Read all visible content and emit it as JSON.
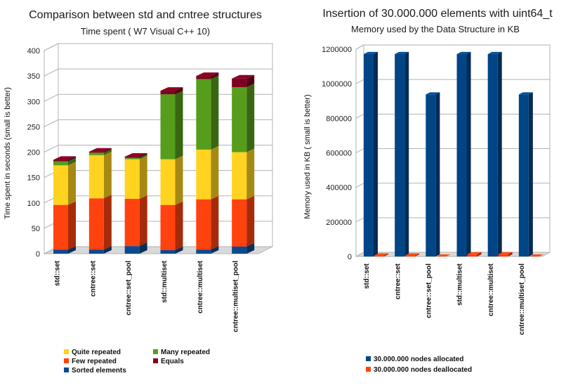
{
  "chart_data": [
    {
      "type": "bar",
      "stacked": true,
      "title": "Comparison between std and cntree structures",
      "subtitle": "Time spent ( W7 Visual C++ 10)",
      "xlabel": "",
      "ylabel": "Time spent in seconds (small is better)",
      "ylim": [
        0,
        400
      ],
      "yticks": [
        0,
        50,
        100,
        150,
        200,
        250,
        300,
        350,
        400
      ],
      "grid": true,
      "legend_position": "bottom",
      "categories": [
        "std::set",
        "cntree::set",
        "cntree::set_pool",
        "std::multiset",
        "cntree::multiset",
        "cntree::multiset_pool"
      ],
      "series": [
        {
          "name": "Sorted elements",
          "color": "#0c4a8f",
          "values": [
            8,
            8,
            15,
            7,
            8,
            14
          ]
        },
        {
          "name": "Few repeated",
          "color": "#ff420e",
          "values": [
            88,
            101,
            93,
            89,
            99,
            93
          ]
        },
        {
          "name": "Quite repeated",
          "color": "#ffd320",
          "values": [
            78,
            85,
            78,
            90,
            98,
            93
          ]
        },
        {
          "name": "Many repeated",
          "color": "#579d1c",
          "values": [
            8,
            5,
            3,
            128,
            139,
            128
          ]
        },
        {
          "name": "Equals",
          "color": "#7e0021",
          "values": [
            3,
            2,
            2,
            7,
            6,
            17
          ]
        }
      ]
    },
    {
      "type": "bar",
      "title": "Insertion of 30.000.000 elements with uint64_t",
      "subtitle": "Memory used by the Data Structure in KB",
      "xlabel": "",
      "ylabel": "Memory used in KB ( small is better)",
      "ylim": [
        0,
        1200000
      ],
      "yticks": [
        0,
        200000,
        400000,
        600000,
        800000,
        1000000,
        1200000
      ],
      "grid": true,
      "legend_position": "bottom",
      "categories": [
        "std::set",
        "cntree::set",
        "cntree::set_pool",
        "std::multiset",
        "cntree::multiset",
        "cntree::multiset_pool"
      ],
      "series": [
        {
          "name": "30.000.000 nodes allocated",
          "color": "#004586",
          "values": [
            1172000,
            1172000,
            938000,
            1172000,
            1172000,
            938000
          ]
        },
        {
          "name": "30.000.000 nodes deallocated",
          "color": "#ff420e",
          "values": [
            6000,
            6000,
            100,
            13000,
            13000,
            100
          ]
        }
      ]
    }
  ]
}
